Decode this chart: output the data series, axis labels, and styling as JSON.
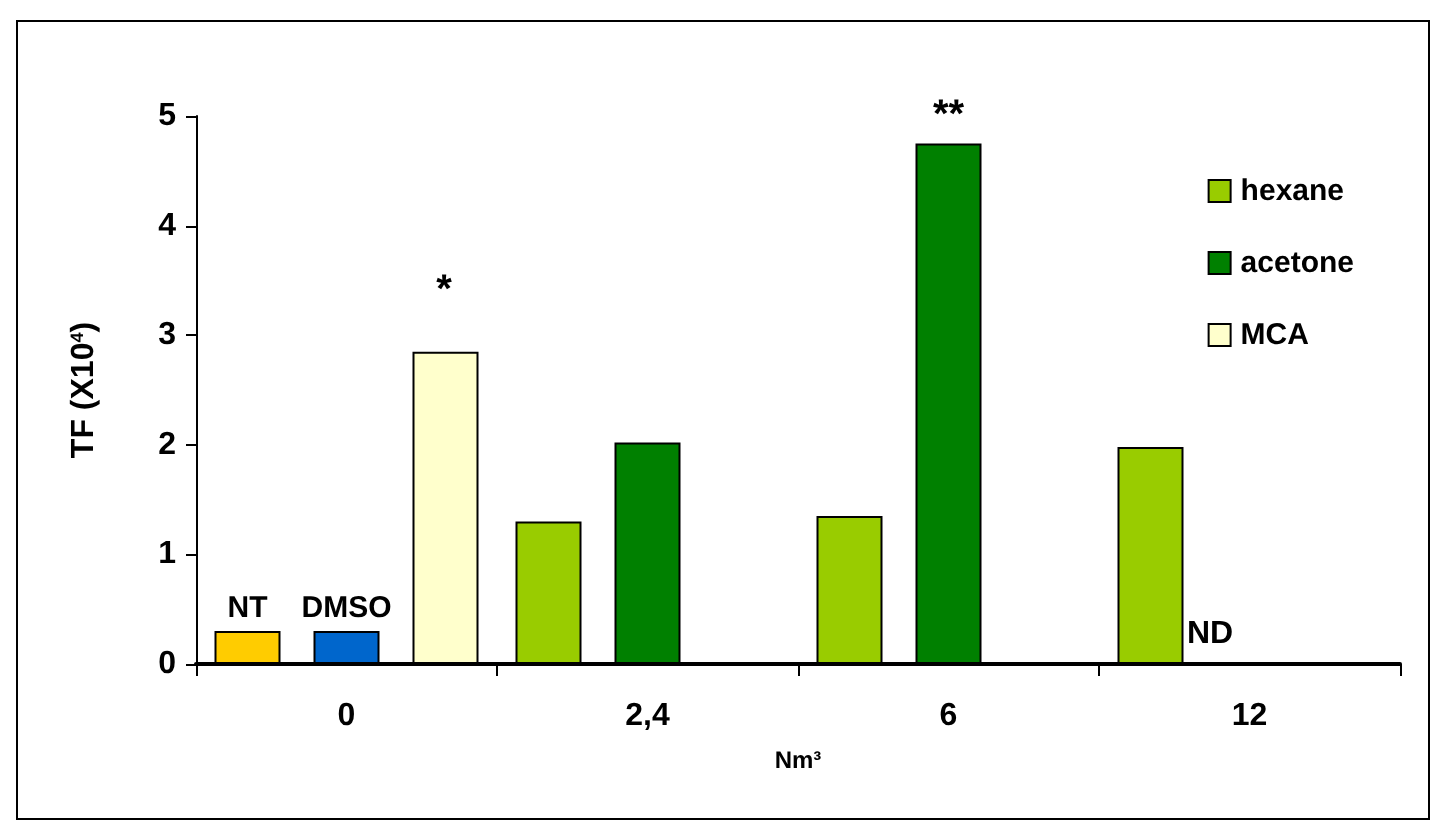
{
  "chart_data": {
    "type": "bar",
    "xlabel": "Nm³",
    "ylabel": "TF (X10$^{4}$)",
    "categories": [
      "0",
      "2,4",
      "6",
      "12"
    ],
    "series": [
      {
        "name": "hexane",
        "color": "#99cc00",
        "values": [
          null,
          1.3,
          1.35,
          1.98
        ]
      },
      {
        "name": "acetone",
        "color": "#008000",
        "values": [
          null,
          2.02,
          4.75,
          null
        ]
      },
      {
        "name": "MCA",
        "color": "#ffffcc",
        "values": [
          2.85,
          null,
          null,
          null
        ]
      },
      {
        "name": "NT",
        "color": "#ffcc00",
        "values": [
          0.3,
          null,
          null,
          null
        ]
      },
      {
        "name": "DMSO",
        "color": "#0066cc",
        "values": [
          0.3,
          null,
          null,
          null
        ]
      }
    ],
    "ylim": [
      0,
      5
    ],
    "yticks": [
      0,
      1,
      2,
      3,
      4,
      5
    ],
    "grid": false,
    "legend": "top right",
    "annotations": [
      "*",
      {
        "text": "**",
        "x": "6",
        "y": 4.75
      },
      "ND"
    ]
  }
}
